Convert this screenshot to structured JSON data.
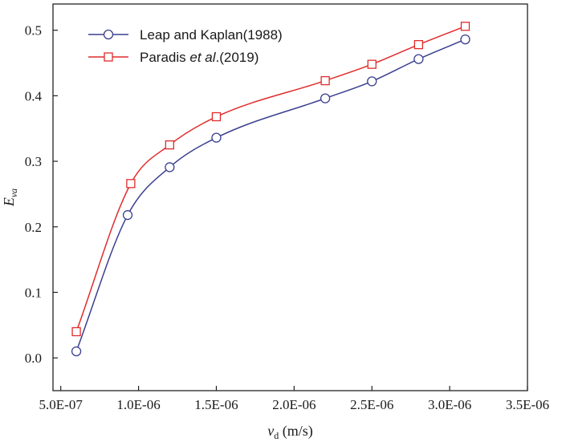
{
  "chart_data": {
    "type": "line",
    "xlabel": {
      "main": "v",
      "sub": "d",
      "rest": " (m/s)"
    },
    "ylabel": {
      "main": "E",
      "sub": "va"
    },
    "xlim": [
      4.5e-07,
      3.5e-06
    ],
    "ylim": [
      -0.05,
      0.54
    ],
    "xticks": [
      5e-07,
      1e-06,
      1.5e-06,
      2e-06,
      2.5e-06,
      3e-06,
      3.5e-06
    ],
    "xtick_labels": [
      "5.0E-07",
      "1.0E-06",
      "1.5E-06",
      "2.0E-06",
      "2.5E-06",
      "3.0E-06",
      "3.5E-06"
    ],
    "yticks": [
      0.0,
      0.1,
      0.2,
      0.3,
      0.4,
      0.5
    ],
    "ytick_labels": [
      "0.0",
      "0.1",
      "0.2",
      "0.3",
      "0.4",
      "0.5"
    ],
    "grid": false,
    "legend_position": "top-left",
    "series": [
      {
        "name": "Leap and Kaplan(1988)",
        "legend_parts": [
          {
            "text": "Leap and Kaplan(1988)",
            "italic": false
          }
        ],
        "marker": "circle",
        "color": "#3a3f8f",
        "x": [
          6e-07,
          9.3e-07,
          1.2e-06,
          1.5e-06,
          2.2e-06,
          2.5e-06,
          2.8e-06,
          3.1e-06
        ],
        "y": [
          0.01,
          0.218,
          0.291,
          0.336,
          0.396,
          0.422,
          0.456,
          0.486
        ]
      },
      {
        "name": "Paradis et al.(2019)",
        "legend_parts": [
          {
            "text": "Paradis ",
            "italic": false
          },
          {
            "text": "et al",
            "italic": true
          },
          {
            "text": ".(2019)",
            "italic": false
          }
        ],
        "marker": "square",
        "color": "#e02b2b",
        "x": [
          6e-07,
          9.5e-07,
          1.2e-06,
          1.5e-06,
          2.2e-06,
          2.5e-06,
          2.8e-06,
          3.1e-06
        ],
        "y": [
          0.04,
          0.266,
          0.325,
          0.368,
          0.423,
          0.448,
          0.478,
          0.506
        ]
      }
    ]
  }
}
